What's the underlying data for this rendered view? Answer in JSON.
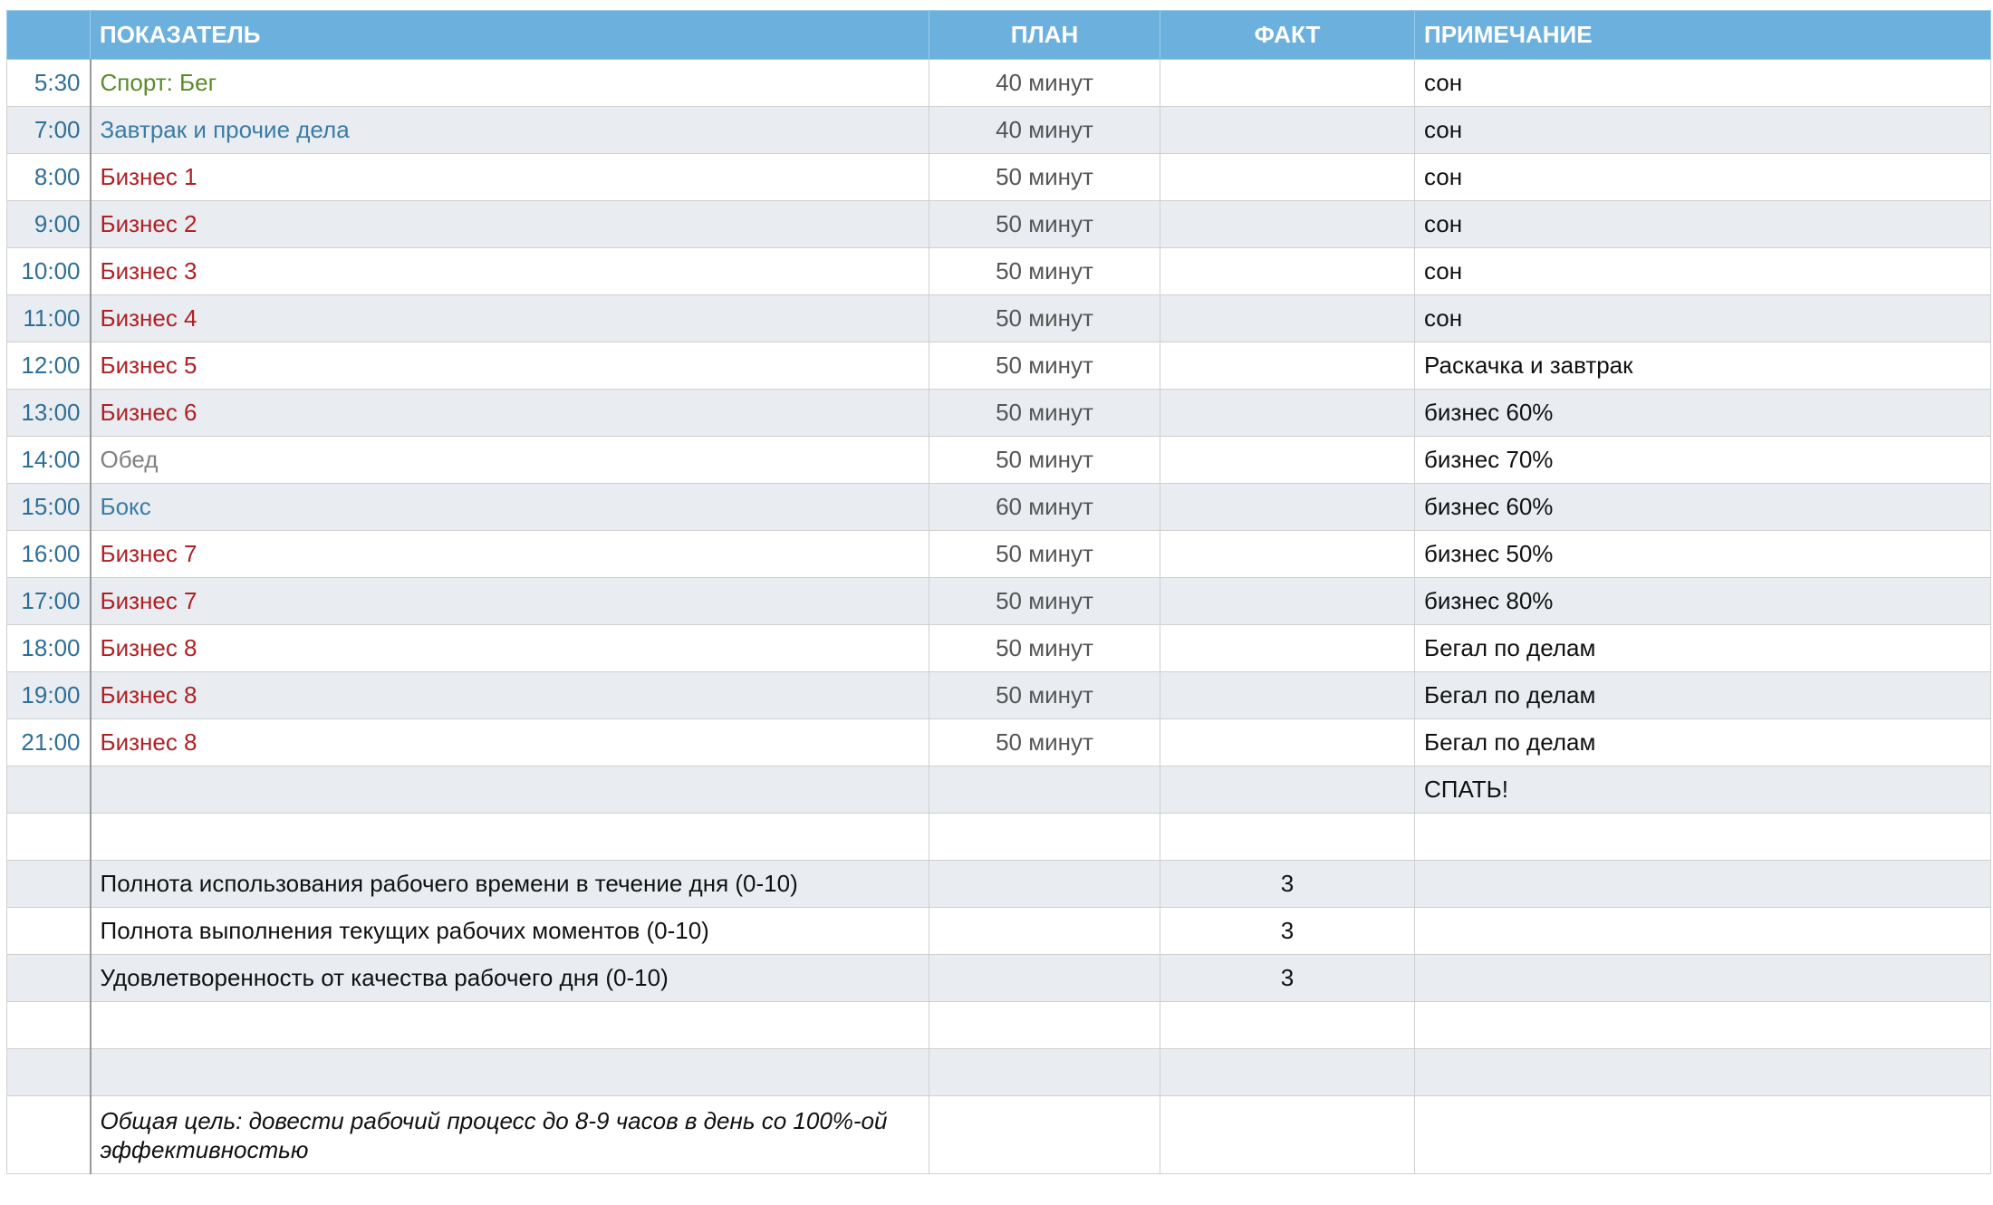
{
  "header": {
    "columns": [
      "ПОКАЗАТЕЛЬ",
      "ПЛАН",
      "ФАКТ",
      "ПРИМЕЧАНИЕ"
    ]
  },
  "rows": [
    {
      "time": "5:30",
      "indicator": "Спорт: Бег",
      "color": "#5a8a2a",
      "plan": "40 минут",
      "note": "сон"
    },
    {
      "time": "7:00",
      "indicator": "Завтрак и прочие дела",
      "color": "#3a7ca5",
      "plan": "40 минут",
      "note": "сон"
    },
    {
      "time": "8:00",
      "indicator": "Бизнес 1",
      "color": "#b02025",
      "plan": "50 минут",
      "note": "сон"
    },
    {
      "time": "9:00",
      "indicator": "Бизнес 2",
      "color": "#b02025",
      "plan": "50 минут",
      "note": "сон"
    },
    {
      "time": "10:00",
      "indicator": "Бизнес 3",
      "color": "#b02025",
      "plan": "50 минут",
      "note": "сон"
    },
    {
      "time": "11:00",
      "indicator": "Бизнес 4",
      "color": "#b02025",
      "plan": "50 минут",
      "note": "сон"
    },
    {
      "time": "12:00",
      "indicator": "Бизнес 5",
      "color": "#b02025",
      "plan": "50 минут",
      "note": "Раскачка и завтрак"
    },
    {
      "time": "13:00",
      "indicator": "Бизнес 6",
      "color": "#b02025",
      "plan": "50 минут",
      "note": "бизнес 60%"
    },
    {
      "time": "14:00",
      "indicator": "Обед",
      "color": "#808080",
      "plan": "50 минут",
      "note": "бизнес 70%"
    },
    {
      "time": "15:00",
      "indicator": "Бокс",
      "color": "#3a7ca5",
      "plan": "60 минут",
      "note": "бизнес 60%"
    },
    {
      "time": "16:00",
      "indicator": "Бизнес 7",
      "color": "#b02025",
      "plan": "50 минут",
      "note": "бизнес 50%"
    },
    {
      "time": "17:00",
      "indicator": "Бизнес 7",
      "color": "#b02025",
      "plan": "50 минут",
      "note": "бизнес 80%"
    },
    {
      "time": "18:00",
      "indicator": "Бизнес 8",
      "color": "#b02025",
      "plan": "50 минут",
      "note": "Бегал по делам"
    },
    {
      "time": "19:00",
      "indicator": "Бизнес 8",
      "color": "#b02025",
      "plan": "50 минут",
      "note": "Бегал по делам"
    },
    {
      "time": "21:00",
      "indicator": "Бизнес 8",
      "color": "#b02025",
      "plan": "50 минут",
      "note": "Бегал по делам"
    },
    {
      "note": "СПАТЬ!"
    },
    {},
    {
      "indicator": "Полнота использования рабочего времени в течение дня (0-10)",
      "fact": 3
    },
    {
      "indicator": "Полнота выполнения текущих рабочих моментов (0-10)",
      "fact": 3
    },
    {
      "indicator": "Удовлетворенность от качества рабочего дня (0-10)",
      "fact": 3
    },
    {},
    {},
    {
      "indicator": "Общая цель: довести рабочий процесс до 8-9 часов в день со 100%-ой эффективностью",
      "italic": true
    }
  ]
}
